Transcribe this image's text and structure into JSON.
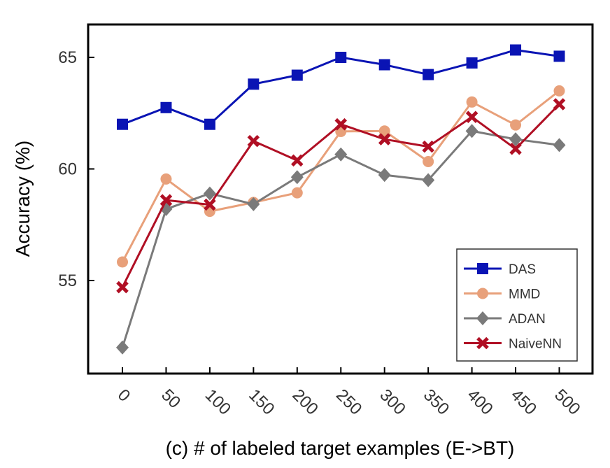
{
  "chart_data": {
    "type": "line",
    "title": "",
    "xlabel": "(c)  # of labeled target examples (E->BT)",
    "ylabel": "Accuracy (%)",
    "categories": [
      "0",
      "50",
      "100",
      "150",
      "200",
      "250",
      "300",
      "350",
      "400",
      "450",
      "500"
    ],
    "ylim": [
      50.5,
      66.5
    ],
    "yticks": [
      55,
      60,
      65
    ],
    "ytick_labels": [
      "55",
      "60",
      "65"
    ],
    "grid": false,
    "legend_position": "bottom-right",
    "series": [
      {
        "name": "DAS",
        "color": "#0a14b4",
        "marker": "square",
        "values": [
          62.0,
          62.75,
          62.0,
          63.8,
          64.2,
          65.0,
          64.67,
          64.23,
          64.75,
          65.33,
          65.05
        ]
      },
      {
        "name": "MMD",
        "color": "#e8a07a",
        "marker": "circle",
        "values": [
          55.83,
          59.55,
          58.1,
          58.5,
          58.93,
          61.68,
          61.7,
          60.33,
          63.0,
          61.97,
          63.5
        ]
      },
      {
        "name": "ADAN",
        "color": "#7a7a7a",
        "marker": "diamond",
        "values": [
          52.0,
          58.2,
          58.9,
          58.42,
          59.63,
          60.65,
          59.73,
          59.5,
          61.7,
          61.33,
          61.07
        ]
      },
      {
        "name": "NaiveNN",
        "color": "#b00f24",
        "marker": "x",
        "values": [
          54.7,
          58.6,
          58.4,
          61.25,
          60.38,
          62.0,
          61.33,
          61.0,
          62.33,
          60.9,
          62.9
        ]
      }
    ]
  }
}
